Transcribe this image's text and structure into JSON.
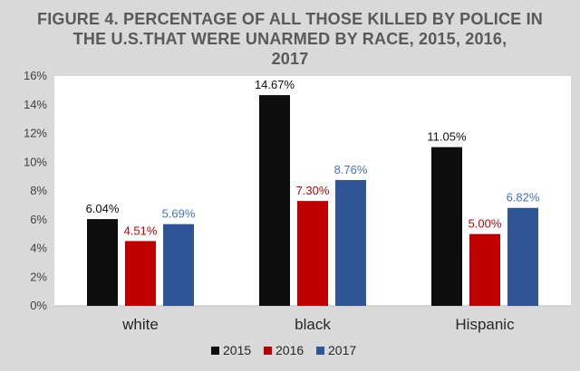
{
  "chart_data": {
    "type": "bar",
    "title": [
      "FIGURE 4. PERCENTAGE OF ALL THOSE KILLED BY POLICE IN",
      "THE U.S.THAT WERE UNARMED BY RACE, 2015, 2016,",
      "2017"
    ],
    "xlabel": "",
    "ylabel": "",
    "categories": [
      "white",
      "black",
      "Hispanic"
    ],
    "ylim": [
      0,
      16
    ],
    "yticks": [
      0,
      2,
      4,
      6,
      8,
      10,
      12,
      14,
      16
    ],
    "ytick_labels": [
      "0%",
      "2%",
      "4%",
      "6%",
      "8%",
      "10%",
      "12%",
      "14%",
      "16%"
    ],
    "grid": false,
    "legend_position": "bottom",
    "series": [
      {
        "name": "2015",
        "color": "#0d0d0d",
        "label_color": "#0d0d0d",
        "values": [
          6.04,
          14.67,
          11.05
        ],
        "labels": [
          "6.04%",
          "14.67%",
          "11.05%"
        ]
      },
      {
        "name": "2016",
        "color": "#c00000",
        "label_color": "#c00000",
        "values": [
          4.51,
          7.3,
          5.0
        ],
        "labels": [
          "4.51%",
          "7.30%",
          "5.00%"
        ]
      },
      {
        "name": "2017",
        "color": "#2f5597",
        "label_color": "#4472c4",
        "values": [
          5.69,
          8.76,
          6.82
        ],
        "labels": [
          "5.69%",
          "8.76%",
          "6.82%"
        ]
      }
    ]
  }
}
